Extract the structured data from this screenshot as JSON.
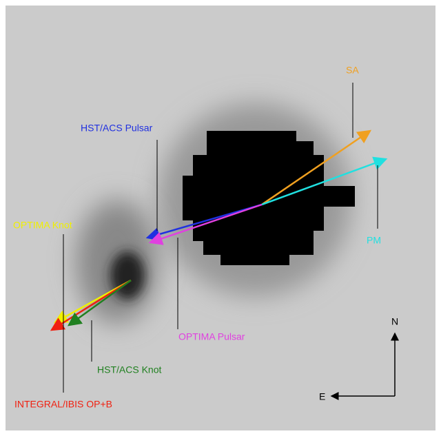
{
  "labels": [
    "SA",
    "HST/ACS Pulsar",
    "PM",
    "OPTIMA Knot",
    "OPTIMA Pulsar",
    "HST/ACS Knot",
    "INTEGRAL/IBIS OP+B"
  ],
  "compass": {
    "north": "N",
    "east": "E"
  }
}
